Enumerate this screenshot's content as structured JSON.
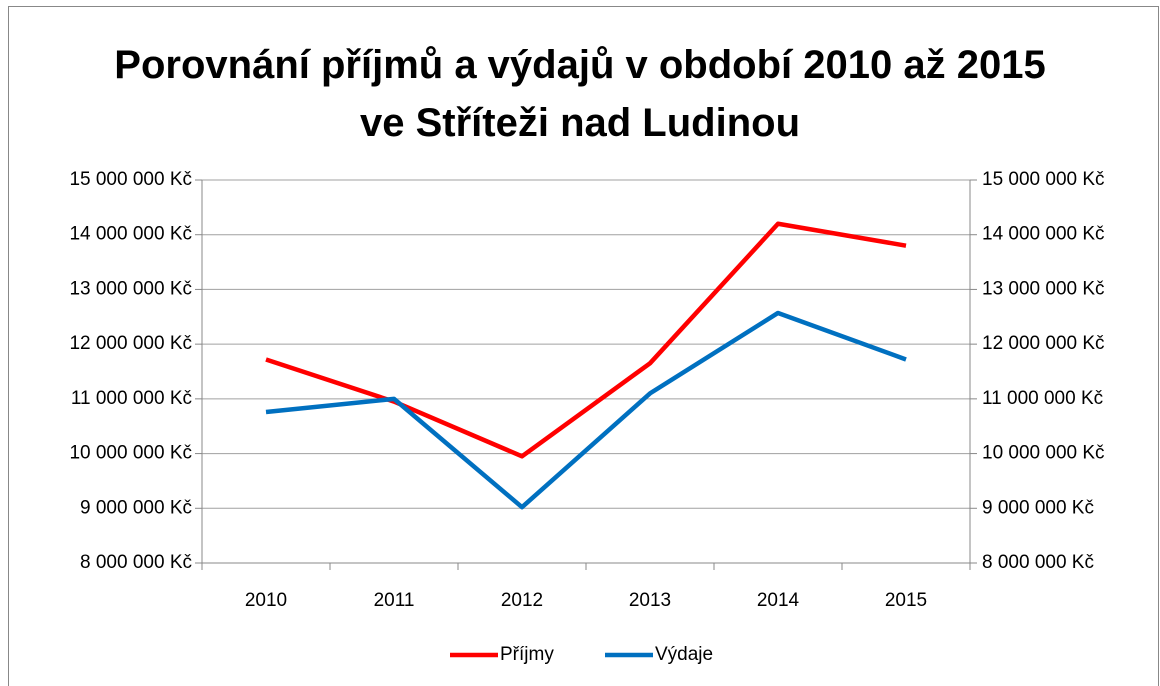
{
  "chart_data": {
    "type": "line",
    "title": "Porovnání příjmů a výdajů v období 2010 až 2015 ve Stříteži nad Ludinou",
    "categories": [
      "2010",
      "2011",
      "2012",
      "2013",
      "2014",
      "2015"
    ],
    "series": [
      {
        "name": "Příjmy",
        "color": "#ff0000",
        "values": [
          11720000,
          10950000,
          9950000,
          11650000,
          14200000,
          13800000
        ]
      },
      {
        "name": "Výdaje",
        "color": "#0070c0",
        "values": [
          10760000,
          11000000,
          9020000,
          11100000,
          12570000,
          11720000
        ]
      }
    ],
    "ylim": [
      8000000,
      15000000
    ],
    "yticks": [
      {
        "value": 8000000,
        "label": "8 000 000 Kč"
      },
      {
        "value": 9000000,
        "label": "9 000 000 Kč"
      },
      {
        "value": 10000000,
        "label": "10 000 000 Kč"
      },
      {
        "value": 11000000,
        "label": "11 000 000 Kč"
      },
      {
        "value": 12000000,
        "label": "12 000 000 Kč"
      },
      {
        "value": 13000000,
        "label": "13 000 000 Kč"
      },
      {
        "value": 14000000,
        "label": "14 000 000 Kč"
      },
      {
        "value": 15000000,
        "label": "15 000 000 Kč"
      }
    ],
    "y2lim": [
      8000000,
      15000000
    ],
    "y2ticks": [
      {
        "value": 8000000,
        "label": "8 000 000 Kč"
      },
      {
        "value": 9000000,
        "label": "9 000 000 Kč"
      },
      {
        "value": 10000000,
        "label": "10 000 000 Kč"
      },
      {
        "value": 11000000,
        "label": "11 000 000 Kč"
      },
      {
        "value": 12000000,
        "label": "12 000 000 Kč"
      },
      {
        "value": 13000000,
        "label": "13 000 000 Kč"
      },
      {
        "value": 14000000,
        "label": "14 000 000 Kč"
      },
      {
        "value": 15000000,
        "label": "15 000 000 Kč"
      }
    ],
    "grid": true,
    "legend": "bottom"
  }
}
